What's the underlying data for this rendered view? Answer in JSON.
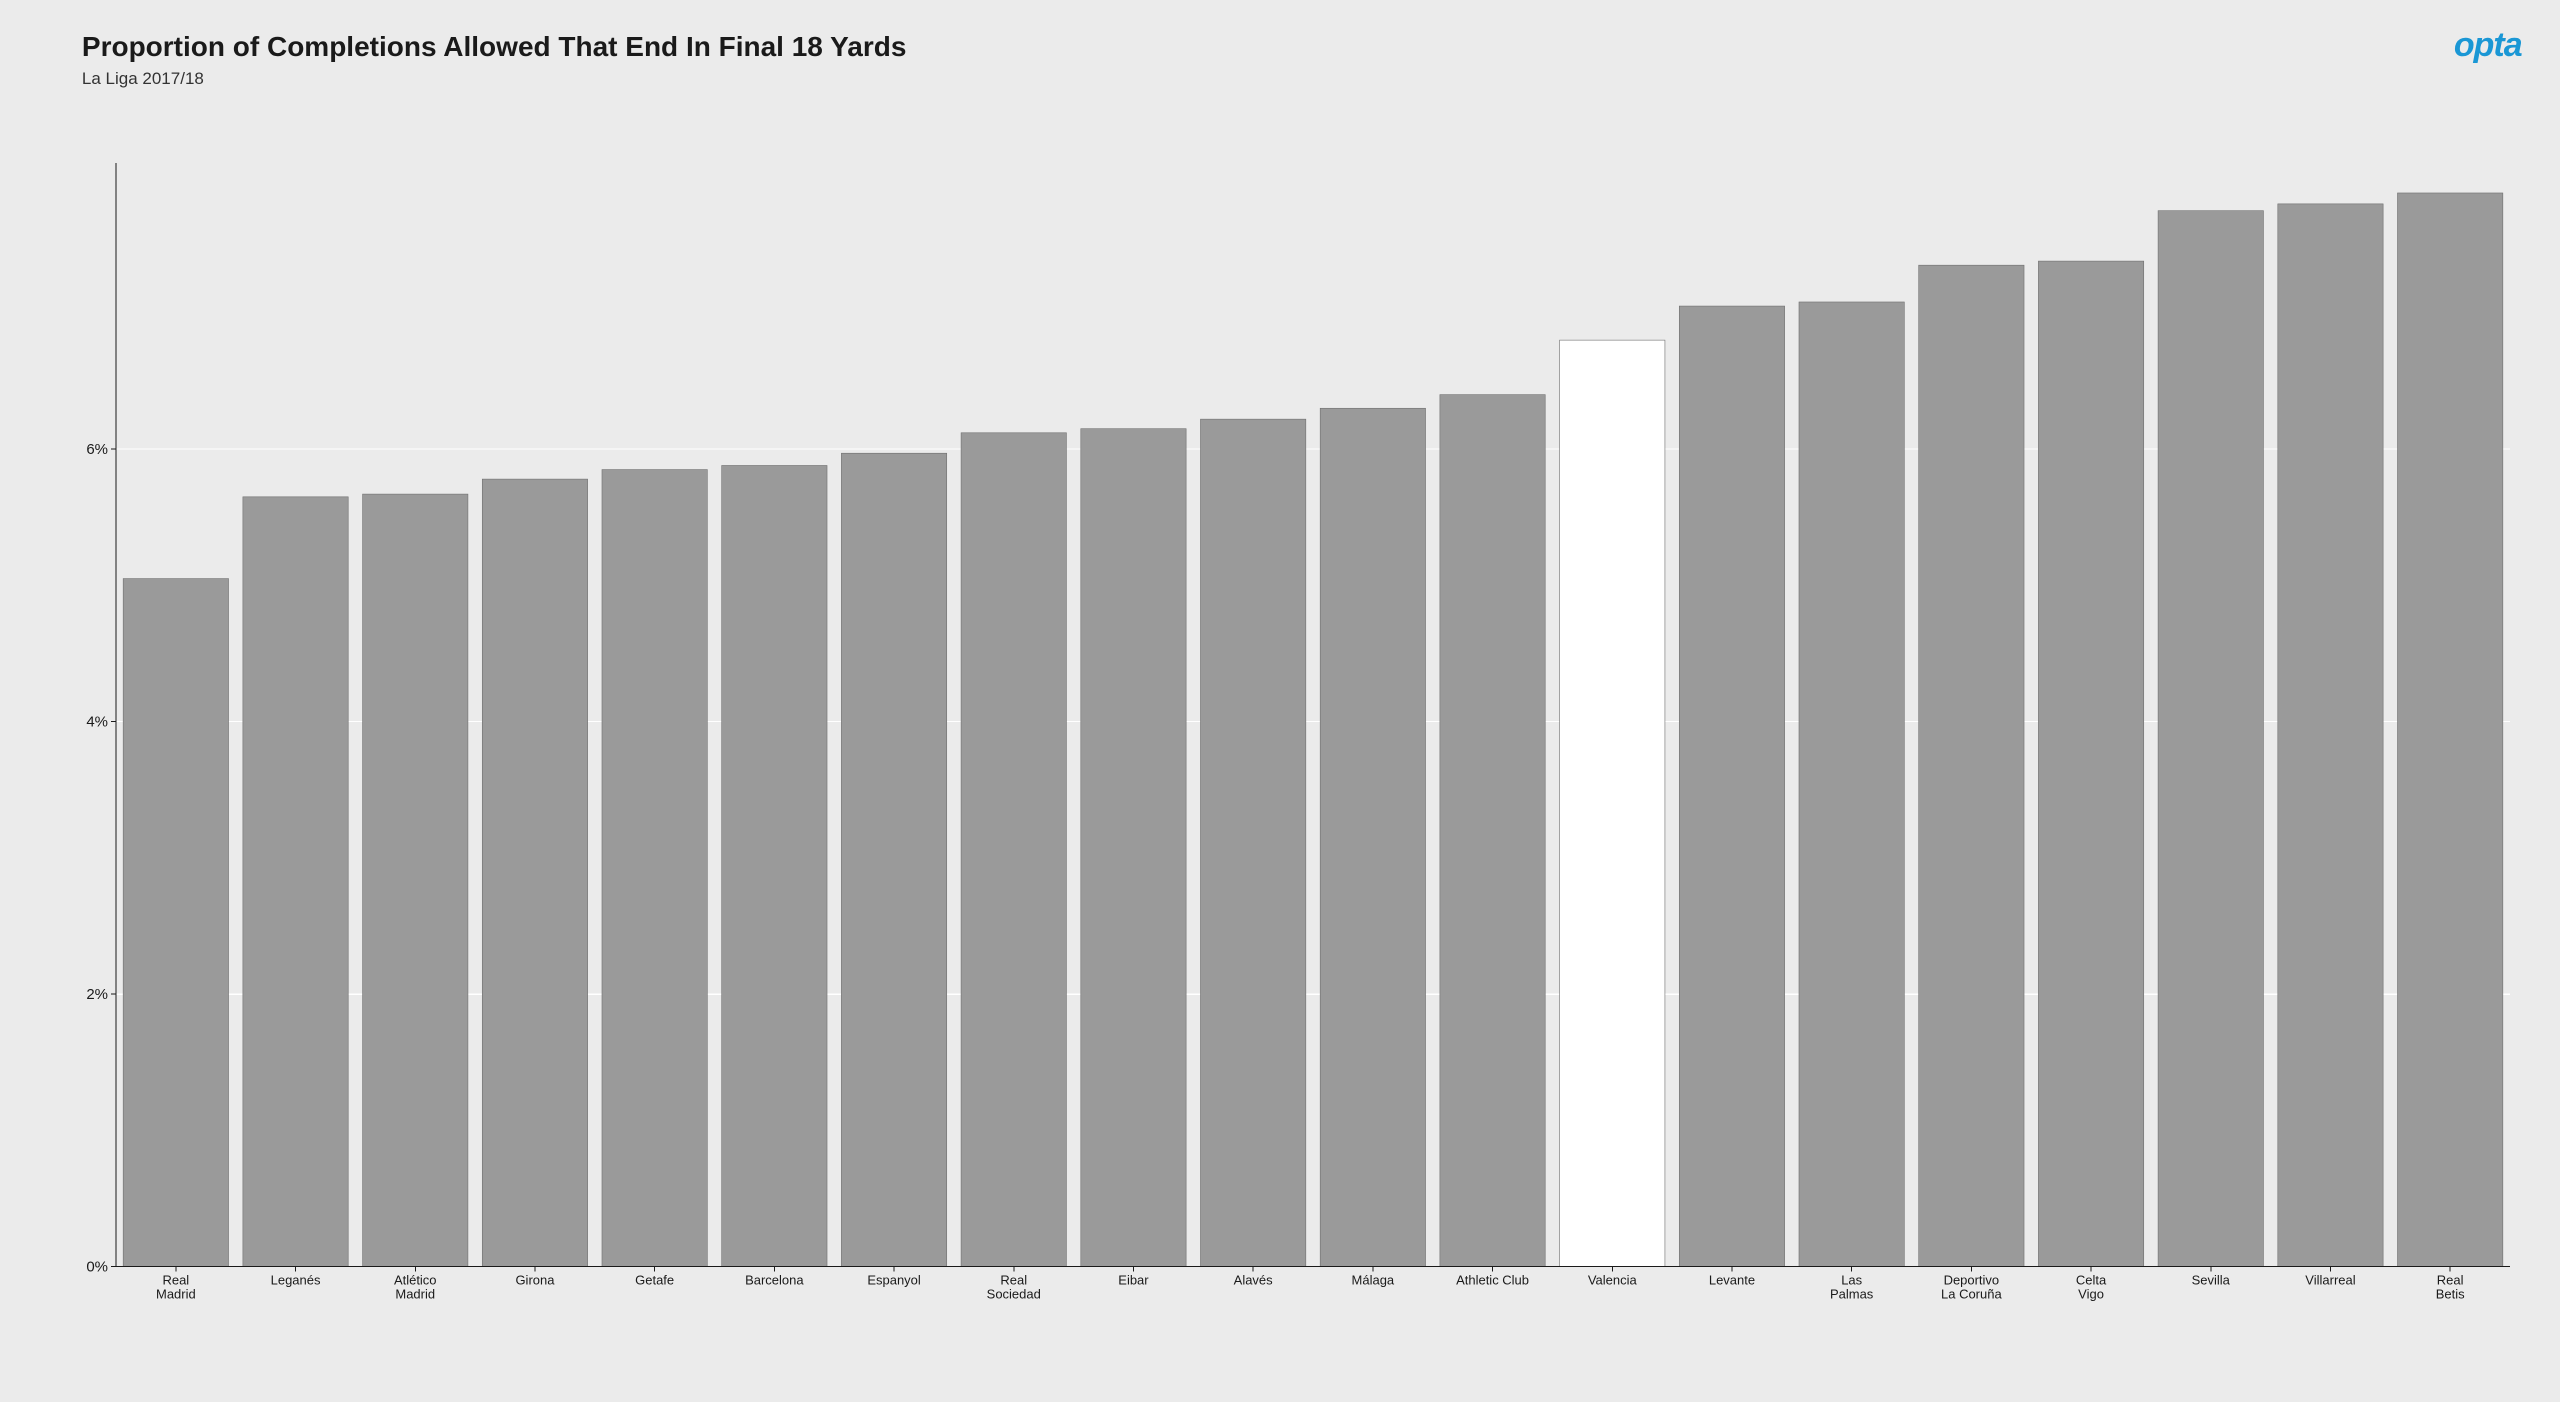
{
  "title": "Proportion of Completions Allowed That End In Final 18 Yards",
  "subtitle": "La Liga 2017/18",
  "logo_text": "opta",
  "logo_color": "#1a97d5",
  "chart": {
    "type": "bar",
    "background_color": "#ebebeb",
    "grid_color": "#ffffff",
    "axis_color": "#1a1a1a",
    "bar_color_default": "#9a9a9a",
    "bar_color_highlight": "#ffffff",
    "bar_border_color": "#6f6f6f",
    "bar_width_ratio": 0.88,
    "ylim": [
      0,
      8.1
    ],
    "yticks": [
      0,
      2,
      4,
      6
    ],
    "ytick_labels": [
      "0%",
      "2%",
      "4%",
      "6%"
    ],
    "tick_fontsize": 15,
    "cat_fontsize": 13,
    "categories": [
      "Real\nMadrid",
      "Leganés",
      "Atlético\nMadrid",
      "Girona",
      "Getafe",
      "Barcelona",
      "Espanyol",
      "Real\nSociedad",
      "Eibar",
      "Alavés",
      "Málaga",
      "Athletic Club",
      "Valencia",
      "Levante",
      "Las\nPalmas",
      "Deportivo\nLa Coruña",
      "Celta\nVigo",
      "Sevilla",
      "Villarreal",
      "Real\nBetis"
    ],
    "values": [
      5.05,
      5.65,
      5.67,
      5.78,
      5.85,
      5.88,
      5.97,
      6.12,
      6.15,
      6.22,
      6.3,
      6.4,
      6.8,
      7.05,
      7.08,
      7.35,
      7.38,
      7.75,
      7.8,
      7.88
    ],
    "highlight_index": 12
  }
}
